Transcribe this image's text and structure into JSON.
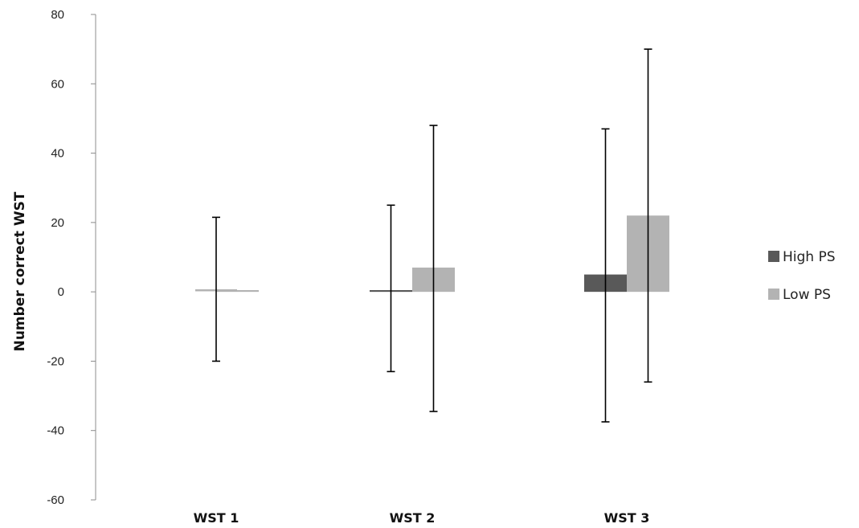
{
  "chart_data": {
    "type": "bar",
    "title": "",
    "xlabel": "",
    "ylabel": "Number  correct WST",
    "ylim": [
      -60,
      80
    ],
    "yticks": [
      80,
      60,
      40,
      20,
      0,
      -20,
      -40,
      -60
    ],
    "categories": [
      "WST 1",
      "WST 2",
      "WST 3"
    ],
    "series": [
      {
        "name": "High PS",
        "color": "#595959",
        "values": [
          0.5,
          0.5,
          5
        ],
        "error_low": [
          null,
          -23,
          -37.5
        ],
        "error_high": [
          null,
          25,
          47
        ]
      },
      {
        "name": "Low PS",
        "color": "#b3b3b3",
        "values": [
          0.5,
          7,
          22
        ],
        "error_low": [
          -20,
          -34.5,
          -26
        ],
        "error_high": [
          21.5,
          48,
          70
        ]
      }
    ],
    "grid": false,
    "legend_position": "right"
  }
}
